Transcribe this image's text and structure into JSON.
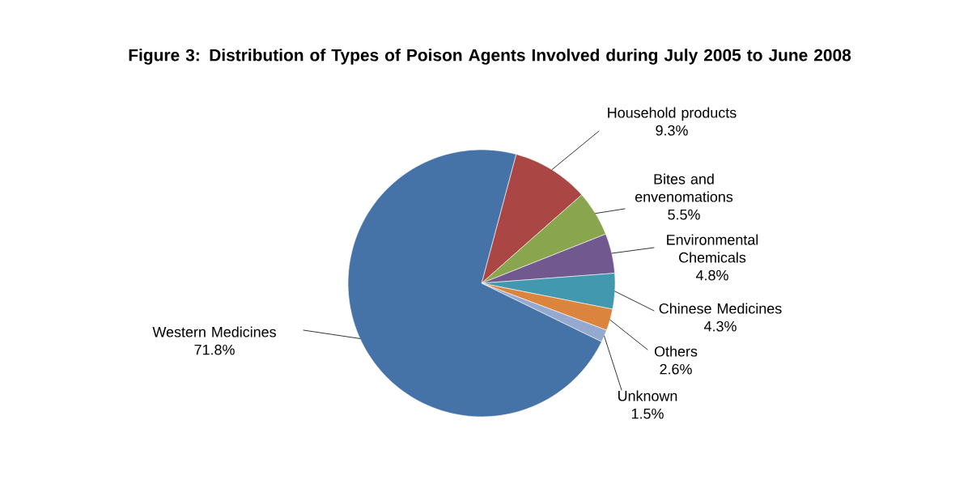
{
  "chart_data": {
    "type": "pie",
    "title": "Figure 3:  Distribution of Types of Poison Agents Involved during July 2005 to June 2008",
    "categories": [
      "Household products",
      "Bites and envenomations",
      "Environmental Chemicals",
      "Chinese Medicines",
      "Others",
      "Unknown",
      "Western Medicines"
    ],
    "values": [
      9.3,
      5.5,
      4.8,
      4.3,
      2.6,
      1.5,
      71.8
    ],
    "value_labels": [
      "9.3%",
      "5.5%",
      "4.8%",
      "4.3%",
      "2.6%",
      "1.5%",
      "71.8%"
    ],
    "colors": [
      "#aa4643",
      "#89a54e",
      "#71588f",
      "#4198af",
      "#db843d",
      "#93a9cf",
      "#4572a7"
    ]
  }
}
